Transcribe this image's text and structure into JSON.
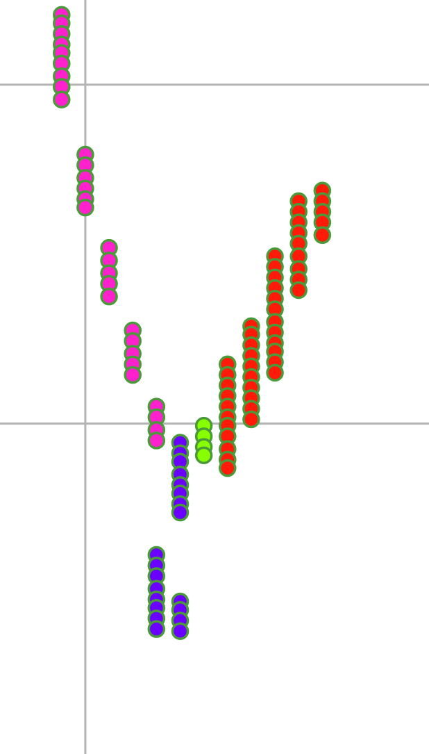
{
  "chart_data": {
    "type": "scatter",
    "title": "",
    "xlabel": "",
    "ylabel": "",
    "grid": true,
    "legend": "none",
    "xlim": [
      -3.6,
      14.5
    ],
    "ylim": [
      -13.8,
      4
    ],
    "gridlines": {
      "x": [
        0
      ],
      "y": [
        2,
        -6
      ]
    },
    "colors": {
      "grid": "#b4b4b4",
      "marker_edge": "#4a9a3a",
      "pink": "#ff22cc",
      "purple": "#6a00ff",
      "green": "#88ff00",
      "red": "#ff1a0a"
    },
    "series": [
      {
        "color": "pink",
        "points": [
          [
            -1,
            3.65
          ],
          [
            -1,
            3.45
          ],
          [
            -1,
            3.2
          ],
          [
            -1,
            2.95
          ],
          [
            -1,
            2.75
          ],
          [
            -1,
            2.5
          ],
          [
            -1,
            2.2
          ],
          [
            -1,
            1.95
          ],
          [
            -1,
            1.65
          ],
          [
            0,
            0.35
          ],
          [
            0,
            0.1
          ],
          [
            0,
            -0.2
          ],
          [
            0,
            -0.45
          ],
          [
            0,
            -0.7
          ],
          [
            0,
            -0.9
          ],
          [
            1,
            -1.85
          ],
          [
            1,
            -2.15
          ],
          [
            1,
            -2.45
          ],
          [
            1,
            -2.7
          ],
          [
            1,
            -3
          ],
          [
            2,
            -3.8
          ],
          [
            2,
            -4.05
          ],
          [
            2,
            -4.35
          ],
          [
            2,
            -4.6
          ],
          [
            2,
            -4.85
          ],
          [
            3,
            -5.6
          ],
          [
            3,
            -5.85
          ],
          [
            3,
            -6.15
          ],
          [
            3,
            -6.4
          ]
        ]
      },
      {
        "color": "purple",
        "points": [
          [
            4,
            -6.45
          ],
          [
            4,
            -6.7
          ],
          [
            4,
            -6.9
          ],
          [
            4,
            -7.2
          ],
          [
            4,
            -7.45
          ],
          [
            4,
            -7.65
          ],
          [
            4,
            -7.9
          ],
          [
            4,
            -8.1
          ],
          [
            3,
            -9.1
          ],
          [
            3,
            -9.35
          ],
          [
            3,
            -9.6
          ],
          [
            3,
            -9.9
          ],
          [
            3,
            -10.15
          ],
          [
            3,
            -10.35
          ],
          [
            3,
            -10.6
          ],
          [
            3,
            -10.85
          ],
          [
            4,
            -10.2
          ],
          [
            4,
            -10.4
          ],
          [
            4,
            -10.65
          ],
          [
            4,
            -10.9
          ]
        ]
      },
      {
        "color": "green",
        "points": [
          [
            5,
            -6.05
          ],
          [
            5,
            -6.3
          ],
          [
            5,
            -6.55
          ],
          [
            5,
            -6.75
          ]
        ]
      },
      {
        "color": "red",
        "points": [
          [
            6,
            -4.6
          ],
          [
            6,
            -4.85
          ],
          [
            6,
            -5.1
          ],
          [
            6,
            -5.35
          ],
          [
            6,
            -5.6
          ],
          [
            6,
            -5.85
          ],
          [
            6,
            -6.05
          ],
          [
            6,
            -6.3
          ],
          [
            6,
            -6.6
          ],
          [
            6,
            -6.85
          ],
          [
            6,
            -7.05
          ],
          [
            7,
            -3.7
          ],
          [
            7,
            -3.9
          ],
          [
            7,
            -4.15
          ],
          [
            7,
            -4.4
          ],
          [
            7,
            -4.65
          ],
          [
            7,
            -4.9
          ],
          [
            7,
            -5.15
          ],
          [
            7,
            -5.4
          ],
          [
            7,
            -5.65
          ],
          [
            7,
            -5.9
          ],
          [
            8,
            -2.05
          ],
          [
            8,
            -2.3
          ],
          [
            8,
            -2.55
          ],
          [
            8,
            -2.8
          ],
          [
            8,
            -3.05
          ],
          [
            8,
            -3.3
          ],
          [
            8,
            -3.6
          ],
          [
            8,
            -3.85
          ],
          [
            8,
            -4.1
          ],
          [
            8,
            -4.3
          ],
          [
            8,
            -4.55
          ],
          [
            8,
            -4.8
          ],
          [
            9,
            -0.75
          ],
          [
            9,
            -1
          ],
          [
            9,
            -1.25
          ],
          [
            9,
            -1.5
          ],
          [
            9,
            -1.75
          ],
          [
            9,
            -2.05
          ],
          [
            9,
            -2.35
          ],
          [
            9,
            -2.6
          ],
          [
            9,
            -2.85
          ],
          [
            10,
            -0.5
          ],
          [
            10,
            -0.75
          ],
          [
            10,
            -1.0
          ],
          [
            10,
            -1.25
          ],
          [
            10,
            -1.55
          ]
        ]
      }
    ]
  }
}
